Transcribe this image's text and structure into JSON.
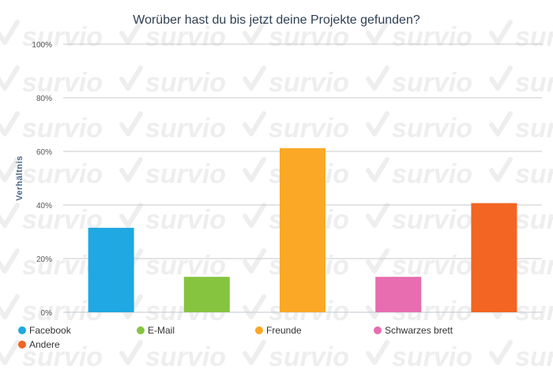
{
  "chart_data": {
    "type": "bar",
    "title": "Worüber hast du bis jetzt deine Projekte gefunden?",
    "ylabel": "Verhältnis",
    "xlabel": "",
    "ylim": [
      0,
      100
    ],
    "yticks": [
      0,
      20,
      40,
      60,
      80,
      100
    ],
    "ytick_labels": [
      "0%",
      "20%",
      "40%",
      "60%",
      "80%",
      "100%"
    ],
    "grid": true,
    "legend_position": "bottom",
    "categories": [
      "Facebook",
      "E-Mail",
      "Freunde",
      "Schwarzes brett",
      "Andere"
    ],
    "values": [
      31.5,
      13.2,
      61.2,
      13.2,
      40.7
    ],
    "colors": [
      "#1fa8e1",
      "#86c440",
      "#fba826",
      "#e76db0",
      "#f26522"
    ]
  },
  "watermark": {
    "text": "survio",
    "color": "#eeeeee",
    "icon": "check-icon"
  }
}
